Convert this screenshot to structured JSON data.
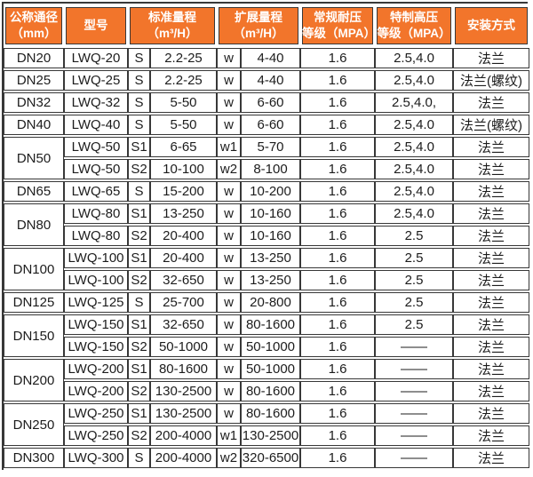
{
  "colors": {
    "header_bg": "#f2752b",
    "header_text": "#ffffff",
    "border": "#383838",
    "body_text": "#1c1c1c",
    "background": "#ffffff"
  },
  "table": {
    "headers": [
      "公称通径\n（mm）",
      "型号",
      "标准量程\n（m³/H）",
      "扩展量程\n（m³/H）",
      "常规耐压\n等级（MPA）",
      "特制高压\n等级（MPA）",
      "安装方式"
    ],
    "rows": [
      {
        "dn": "DN20",
        "dn_span": 1,
        "model": "LWQ-20",
        "std_label": "S",
        "std_range": "2.2-25",
        "ext_label": "w",
        "ext_range": "4-40",
        "pressure_standard": "1.6",
        "pressure_high": "2.5,4.0",
        "install": "法兰"
      },
      {
        "dn": "DN25",
        "dn_span": 1,
        "model": "LWQ-25",
        "std_label": "S",
        "std_range": "2.2-25",
        "ext_label": "w",
        "ext_range": "4-40",
        "pressure_standard": "1.6",
        "pressure_high": "2.5,4.0",
        "install": "法兰(螺纹)"
      },
      {
        "dn": "DN32",
        "dn_span": 1,
        "model": "LWQ-32",
        "std_label": "S",
        "std_range": "5-50",
        "ext_label": "w",
        "ext_range": "6-60",
        "pressure_standard": "1.6",
        "pressure_high": "2.5,4.0,",
        "install": "法兰"
      },
      {
        "dn": "DN40",
        "dn_span": 1,
        "model": "LWQ-40",
        "std_label": "S",
        "std_range": "5-50",
        "ext_label": "w",
        "ext_range": "6-60",
        "pressure_standard": "1.6",
        "pressure_high": "2.5,4.0",
        "install": "法兰(螺纹)"
      },
      {
        "dn": "DN50",
        "dn_span": 2,
        "model": "LWQ-50",
        "std_label": "S1",
        "std_range": "6-65",
        "ext_label": "w1",
        "ext_range": "5-70",
        "pressure_standard": "1.6",
        "pressure_high": "2.5,4.0",
        "install": "法兰"
      },
      {
        "model": "LWQ-50",
        "std_label": "S2",
        "std_range": "10-100",
        "ext_label": "w2",
        "ext_range": "8-100",
        "pressure_standard": "1.6",
        "pressure_high": "2.5,4.0",
        "install": "法兰"
      },
      {
        "dn": "DN65",
        "dn_span": 1,
        "model": "LWQ-65",
        "std_label": "S",
        "std_range": "15-200",
        "ext_label": "w",
        "ext_range": "10-200",
        "pressure_standard": "1.6",
        "pressure_high": "2.5,4.0",
        "install": "法兰"
      },
      {
        "dn": "DN80",
        "dn_span": 2,
        "model": "LWQ-80",
        "std_label": "S1",
        "std_range": "13-250",
        "ext_label": "w",
        "ext_range": "10-160",
        "pressure_standard": "1.6",
        "pressure_high": "2.5,4.0",
        "install": "法兰"
      },
      {
        "model": "LWQ-80",
        "std_label": "S2",
        "std_range": "20-400",
        "ext_label": "w",
        "ext_range": "10-160",
        "pressure_standard": "1.6",
        "pressure_high": "2.5",
        "install": "法兰"
      },
      {
        "dn": "DN100",
        "dn_span": 2,
        "model": "LWQ-100",
        "std_label": "S1",
        "std_range": "20-400",
        "ext_label": "w",
        "ext_range": "13-250",
        "pressure_standard": "1.6",
        "pressure_high": "2.5",
        "install": "法兰"
      },
      {
        "model": "LWQ-100",
        "std_label": "S2",
        "std_range": "32-650",
        "ext_label": "w",
        "ext_range": "13-250",
        "pressure_standard": "1.6",
        "pressure_high": "2.5",
        "install": "法兰"
      },
      {
        "dn": "DN125",
        "dn_span": 1,
        "model": "LWQ-125",
        "std_label": "S",
        "std_range": "25-700",
        "ext_label": "w",
        "ext_range": "20-800",
        "pressure_standard": "1.6",
        "pressure_high": "2.5",
        "install": "法兰"
      },
      {
        "dn": "DN150",
        "dn_span": 2,
        "model": "LWQ-150",
        "std_label": "S1",
        "std_range": "32-650",
        "ext_label": "w",
        "ext_range": "80-1600",
        "pressure_standard": "1.6",
        "pressure_high": "2.5",
        "install": "法兰"
      },
      {
        "model": "LWQ-150",
        "std_label": "S2",
        "std_range": "50-1000",
        "ext_label": "w",
        "ext_range": "50-1000",
        "pressure_standard": "1.6",
        "pressure_high": "——",
        "install": "法兰"
      },
      {
        "dn": "DN200",
        "dn_span": 2,
        "model": "LWQ-200",
        "std_label": "S1",
        "std_range": "80-1600",
        "ext_label": "w",
        "ext_range": "50-1000",
        "pressure_standard": "1.6",
        "pressure_high": "——",
        "install": "法兰"
      },
      {
        "model": "LWQ-200",
        "std_label": "S2",
        "std_range": "130-2500",
        "ext_label": "w",
        "ext_range": "80-1600",
        "pressure_standard": "1.6",
        "pressure_high": "——",
        "install": "法兰"
      },
      {
        "dn": "DN250",
        "dn_span": 2,
        "model": "LWQ-250",
        "std_label": "S1",
        "std_range": "130-2500",
        "ext_label": "w",
        "ext_range": "80-1600",
        "pressure_standard": "1.6",
        "pressure_high": "——",
        "install": "法兰"
      },
      {
        "model": "LWQ-250",
        "std_label": "S2",
        "std_range": "200-4000",
        "ext_label": "w1",
        "ext_range": "130-2500",
        "pressure_standard": "1.6",
        "pressure_high": "——",
        "install": "法兰"
      },
      {
        "dn": "DN300",
        "dn_span": 1,
        "model": "LWQ-300",
        "std_label": "S",
        "std_range": "200-4000",
        "ext_label": "w2",
        "ext_range": "320-6500",
        "pressure_standard": "1.6",
        "pressure_high": "——",
        "install": "法兰"
      }
    ]
  }
}
